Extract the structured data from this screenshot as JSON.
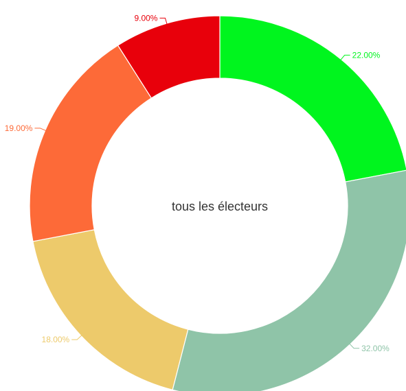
{
  "chart_data": {
    "type": "pie",
    "donut": true,
    "center_label": "tous les électeurs",
    "slices": [
      {
        "value": 22.0,
        "label": "22.00%",
        "color": "#00f51e"
      },
      {
        "value": 32.0,
        "label": "32.00%",
        "color": "#8fc4a8"
      },
      {
        "value": 18.0,
        "label": "18.00%",
        "color": "#edca6b"
      },
      {
        "value": 19.0,
        "label": "19.00%",
        "color": "#fd6a38"
      },
      {
        "value": 9.0,
        "label": "9.00%",
        "color": "#e8000b"
      }
    ]
  }
}
